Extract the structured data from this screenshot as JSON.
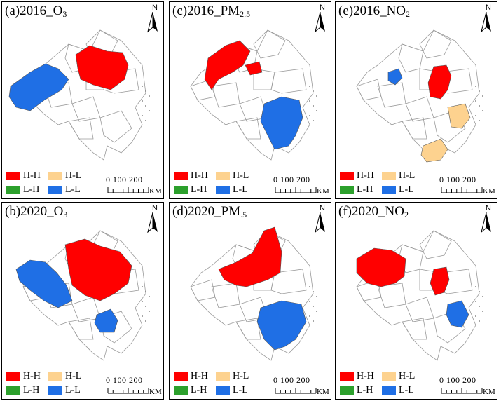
{
  "figure": {
    "panels": [
      {
        "id": "a",
        "label": "(a)2016_O",
        "sub": "3"
      },
      {
        "id": "c",
        "label": "(c)2016_PM",
        "sub": "2.5"
      },
      {
        "id": "e",
        "label": "(e)2016_NO",
        "sub": "2"
      },
      {
        "id": "b",
        "label": "(b)2020_O",
        "sub": "3"
      },
      {
        "id": "d",
        "label": "(d)2020_PM",
        "sub": ".5"
      },
      {
        "id": "f",
        "label": "(f)2020_NO",
        "sub": "2"
      }
    ],
    "panel_regions": {
      "a": {
        "HH": [
          "north-central cluster"
        ],
        "LL": [
          "western cluster"
        ]
      },
      "c": {
        "HH": [
          "northern cluster"
        ],
        "LL": [
          "southeastern coastal cluster"
        ]
      },
      "e": {
        "HH": [
          "central coastal cluster"
        ],
        "HL": [
          "coastal south",
          "far south"
        ],
        "LL": [
          "small west"
        ]
      },
      "b": {
        "HH": [
          "central-north large cluster"
        ],
        "LL": [
          "west-central cluster",
          "south-central unit"
        ]
      },
      "d": {
        "HH": [
          "north-central cluster"
        ],
        "LL": [
          "southeastern coastal cluster"
        ]
      },
      "f": {
        "HH": [
          "west cluster",
          "central unit"
        ],
        "LL": [
          "southeast coastal unit"
        ]
      }
    },
    "legend": [
      {
        "label": "H-H",
        "color": "#ff0000"
      },
      {
        "label": "H-L",
        "color": "#fdd28f"
      },
      {
        "label": "L-H",
        "color": "#2ca02c"
      },
      {
        "label": "L-L",
        "color": "#1f6fe5"
      }
    ],
    "scale": {
      "ticks": "0 100 200",
      "unit": "KM"
    },
    "north_label": "N",
    "colors": {
      "outline": "#9a9a9a",
      "background": "#ffffff"
    }
  }
}
